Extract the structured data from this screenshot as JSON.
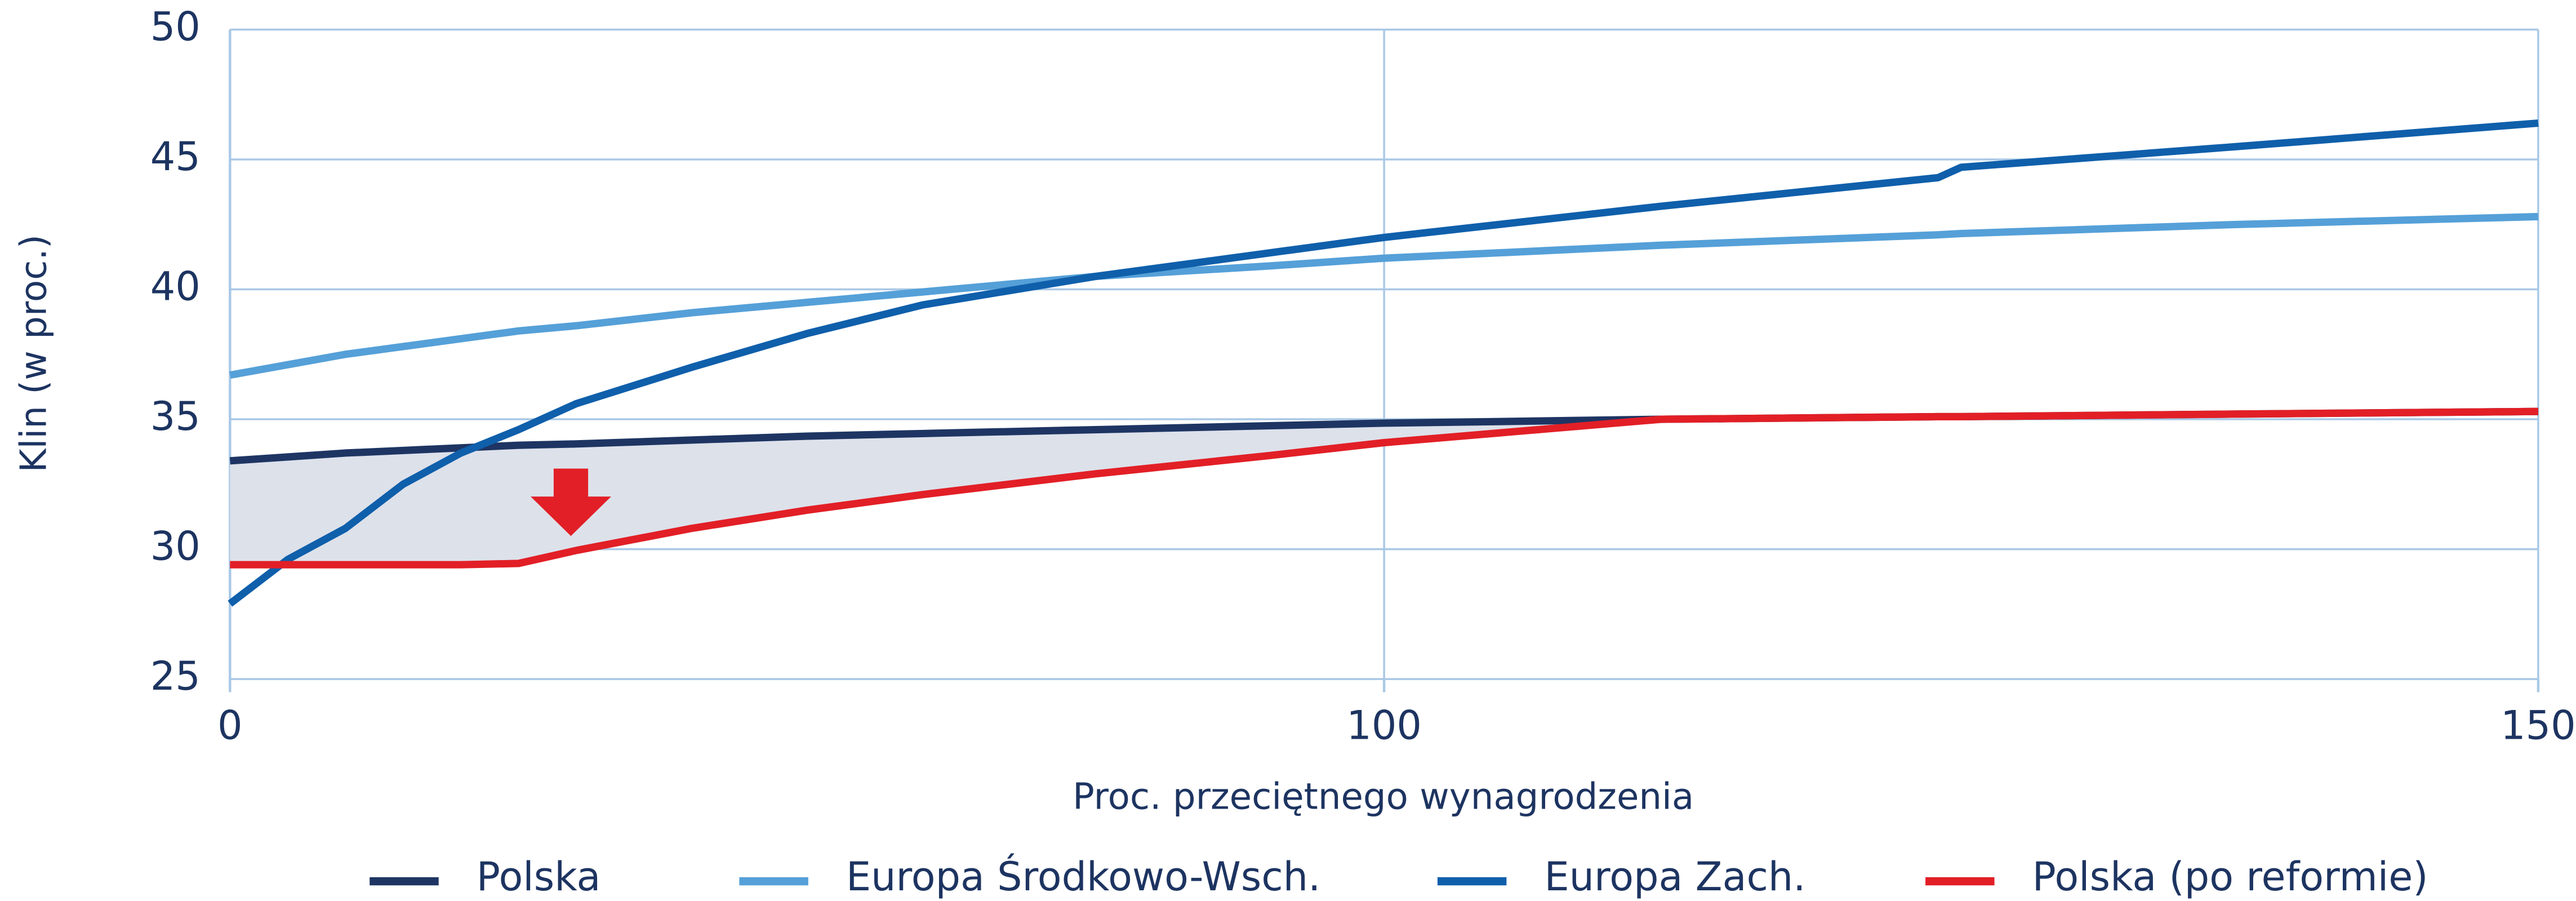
{
  "chart_data": {
    "type": "line",
    "xlabel": "Proc. przeciętnego wynagrodzenia",
    "ylabel": "Klin (w proc.)",
    "x": [
      0,
      5,
      10,
      15,
      20,
      25,
      30,
      40,
      50,
      60,
      75,
      90,
      100,
      112,
      124,
      125,
      137,
      150
    ],
    "xlim": [
      0,
      150
    ],
    "xticks": [
      0,
      100,
      150
    ],
    "ylim": [
      25,
      50
    ],
    "yticks": [
      25,
      30,
      35,
      40,
      45,
      50
    ],
    "grid": true,
    "legend": "bottom",
    "fill_between": [
      0,
      3
    ],
    "fill_color": "#dde1ea",
    "series": [
      {
        "name": "Polska",
        "color": "#1e3563",
        "values": [
          33.4,
          33.55,
          33.7,
          33.8,
          33.9,
          34.0,
          34.05,
          34.2,
          34.35,
          34.45,
          34.6,
          34.75,
          34.85,
          35.0,
          35.1,
          35.1,
          35.2,
          35.3
        ]
      },
      {
        "name": "Europa Środkowo-Wsch.",
        "color": "#55a0d8",
        "values": [
          36.7,
          37.1,
          37.5,
          37.8,
          38.1,
          38.4,
          38.6,
          39.1,
          39.5,
          39.9,
          40.5,
          40.9,
          41.2,
          41.7,
          42.1,
          42.15,
          42.5,
          42.8
        ]
      },
      {
        "name": "Europa Zach.",
        "color": "#0f5fab",
        "values": [
          27.9,
          29.6,
          30.8,
          32.5,
          33.7,
          34.6,
          35.6,
          37.0,
          38.3,
          39.4,
          40.5,
          41.4,
          42.0,
          43.2,
          44.3,
          44.7,
          45.5,
          46.4
        ]
      },
      {
        "name": "Polska (po reformie)",
        "color": "#e21f26",
        "values": [
          29.4,
          29.4,
          29.4,
          29.4,
          29.4,
          29.45,
          29.95,
          30.8,
          31.5,
          32.1,
          32.9,
          33.6,
          34.1,
          35.0,
          35.1,
          35.1,
          35.2,
          35.3
        ]
      }
    ]
  }
}
